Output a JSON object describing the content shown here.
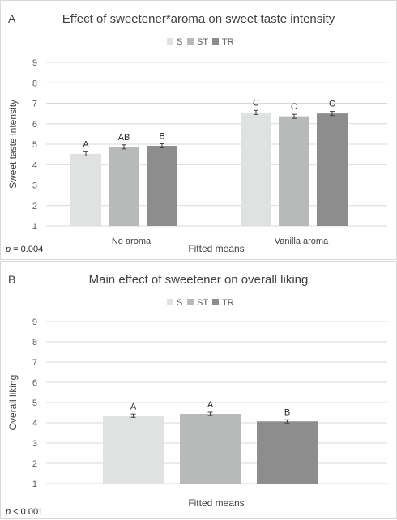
{
  "chart_data": [
    {
      "panel": "A",
      "type": "bar",
      "title": "Effect of sweetener*aroma on sweet taste intensity",
      "xlabel": "Fitted means",
      "ylabel": "Sweet taste intensity",
      "ylim": [
        1,
        9
      ],
      "yticks": [
        "1",
        "2",
        "3",
        "4",
        "5",
        "6",
        "7",
        "8",
        "9"
      ],
      "grid": true,
      "legend": "top-center",
      "categories": [
        "No aroma",
        "Vanilla aroma"
      ],
      "series": [
        {
          "name": "S",
          "color": "#e0e2e2",
          "values": [
            4.53,
            6.55
          ],
          "errors": [
            0.1,
            0.1
          ],
          "letters": [
            "A",
            "C"
          ]
        },
        {
          "name": "ST",
          "color": "#b8b9b9",
          "values": [
            4.87,
            6.36
          ],
          "errors": [
            0.1,
            0.1
          ],
          "letters": [
            "AB",
            "C"
          ]
        },
        {
          "name": "TR",
          "color": "#8d8d8d",
          "values": [
            4.92,
            6.5
          ],
          "errors": [
            0.1,
            0.1
          ],
          "letters": [
            "B",
            "C"
          ]
        }
      ],
      "p_prefix": "p",
      "p_value": " = 0.004"
    },
    {
      "panel": "B",
      "type": "bar",
      "title": "Main effect of sweetener on overall liking",
      "xlabel": "Fitted means",
      "ylabel": "Overall liking",
      "ylim": [
        1,
        9
      ],
      "yticks": [
        "1",
        "2",
        "3",
        "4",
        "5",
        "6",
        "7",
        "8",
        "9"
      ],
      "grid": true,
      "legend": "top-center",
      "categories": [
        ""
      ],
      "series": [
        {
          "name": "S",
          "color": "#e0e2e2",
          "values": [
            4.35
          ],
          "errors": [
            0.08
          ],
          "letters": [
            "A"
          ]
        },
        {
          "name": "ST",
          "color": "#b8b9b9",
          "values": [
            4.44
          ],
          "errors": [
            0.08
          ],
          "letters": [
            "A"
          ]
        },
        {
          "name": "TR",
          "color": "#8d8d8d",
          "values": [
            4.07
          ],
          "errors": [
            0.08
          ],
          "letters": [
            "B"
          ]
        }
      ],
      "p_prefix": "p",
      "p_value": " < 0.001"
    }
  ]
}
